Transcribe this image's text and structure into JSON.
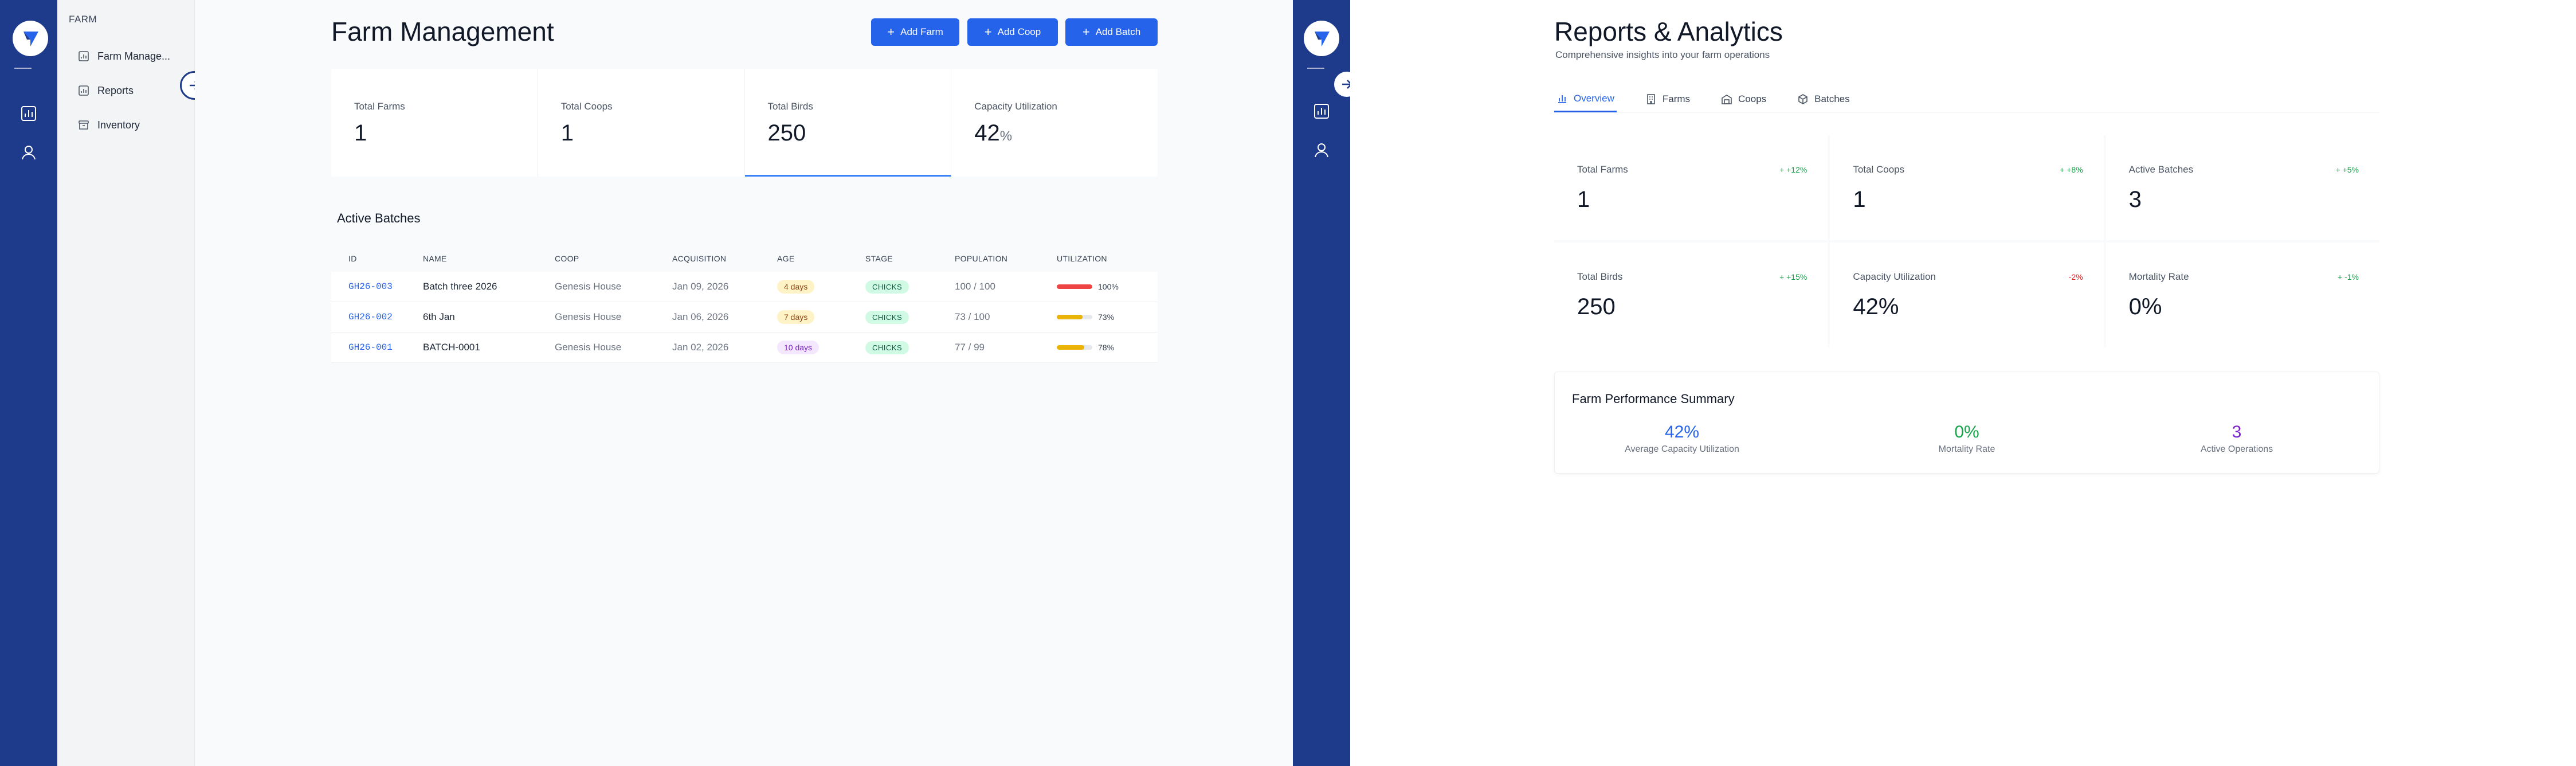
{
  "left_panel": {
    "sidebar": {
      "section_label": "FARM",
      "items": [
        {
          "label": "Farm Manage...",
          "icon": "chart-icon"
        },
        {
          "label": "Reports",
          "icon": "chart-icon"
        },
        {
          "label": "Inventory",
          "icon": "archive-icon"
        }
      ]
    },
    "page_title": "Farm Management",
    "buttons": {
      "add_farm": "Add Farm",
      "add_coop": "Add Coop",
      "add_batch": "Add Batch"
    },
    "stats": [
      {
        "label": "Total Farms",
        "value": "1",
        "unit": ""
      },
      {
        "label": "Total Coops",
        "value": "1",
        "unit": ""
      },
      {
        "label": "Total Birds",
        "value": "250",
        "unit": ""
      },
      {
        "label": "Capacity Utilization",
        "value": "42",
        "unit": "%"
      }
    ],
    "batches": {
      "title": "Active Batches",
      "columns": [
        "ID",
        "NAME",
        "COOP",
        "ACQUISITION",
        "AGE",
        "STAGE",
        "POPULATION",
        "UTILIZATION"
      ],
      "rows": [
        {
          "id": "GH26-003",
          "name": "Batch three 2026",
          "coop": "Genesis House",
          "acquisition": "Jan 09, 2026",
          "age": "4 days",
          "stage": "CHICKS",
          "population": "100 / 100",
          "utilization": "100%",
          "util_fraction": 1.0,
          "bar_color": "#ef4444"
        },
        {
          "id": "GH26-002",
          "name": "6th Jan",
          "coop": "Genesis House",
          "acquisition": "Jan 06, 2026",
          "age": "7 days",
          "stage": "CHICKS",
          "population": "73 / 100",
          "utilization": "73%",
          "util_fraction": 0.73,
          "bar_color": "#eab308"
        },
        {
          "id": "GH26-001",
          "name": "BATCH-0001",
          "coop": "Genesis House",
          "acquisition": "Jan 02, 2026",
          "age": "10 days",
          "stage": "CHICKS",
          "population": "77 / 99",
          "utilization": "78%",
          "util_fraction": 0.78,
          "bar_color": "#eab308"
        }
      ]
    }
  },
  "right_panel": {
    "page_title": "Reports & Analytics",
    "subtitle": "Comprehensive insights into your farm operations",
    "tabs": [
      {
        "label": "Overview",
        "icon": "bar-chart-icon"
      },
      {
        "label": "Farms",
        "icon": "building-icon"
      },
      {
        "label": "Coops",
        "icon": "warehouse-icon"
      },
      {
        "label": "Batches",
        "icon": "box-icon"
      }
    ],
    "stats": [
      {
        "label": "Total Farms",
        "value": "1",
        "change": "+ +12%",
        "trend": "up"
      },
      {
        "label": "Total Coops",
        "value": "1",
        "change": "+ +8%",
        "trend": "up"
      },
      {
        "label": "Active Batches",
        "value": "3",
        "change": "+ +5%",
        "trend": "up"
      },
      {
        "label": "Total Birds",
        "value": "250",
        "change": "+ +15%",
        "trend": "up"
      },
      {
        "label": "Capacity Utilization",
        "value": "42%",
        "change": "-2%",
        "trend": "down"
      },
      {
        "label": "Mortality Rate",
        "value": "0%",
        "change": "+ -1%",
        "trend": "up"
      }
    ],
    "summary": {
      "title": "Farm Performance Summary",
      "metrics": [
        {
          "value": "42%",
          "label": "Average Capacity Utilization",
          "color": "#2563eb"
        },
        {
          "value": "0%",
          "label": "Mortality Rate",
          "color": "#16a34a"
        },
        {
          "value": "3",
          "label": "Active Operations",
          "color": "#7e22ce"
        }
      ]
    }
  },
  "colors": {
    "rail": "#1e3a8a",
    "primary": "#2563eb"
  }
}
